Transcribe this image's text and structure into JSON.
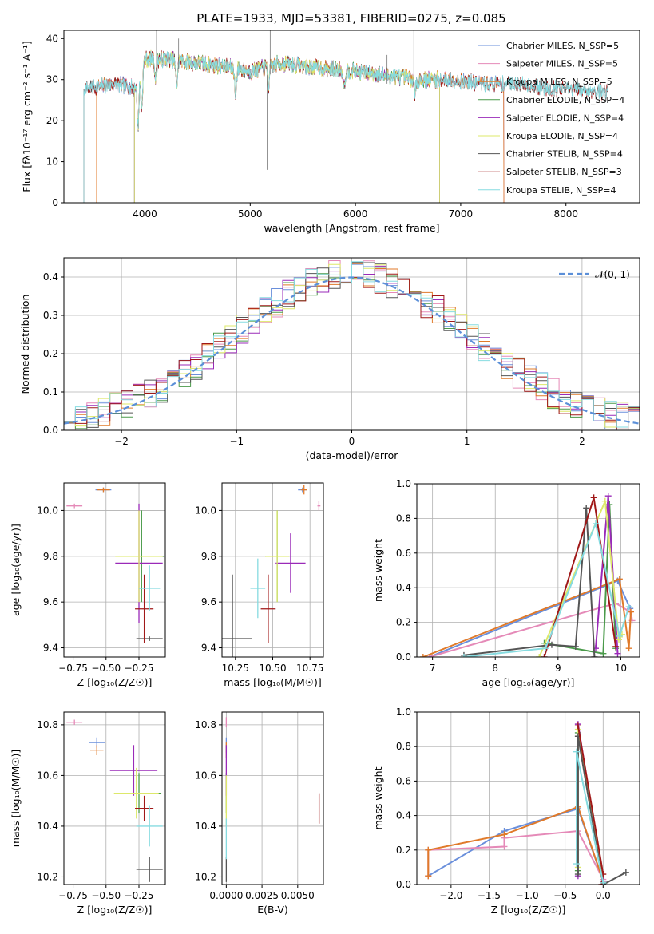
{
  "title": "PLATE=1933, MJD=53381, FIBERID=0275, z=0.085",
  "model_colors": [
    "#6a8fdb",
    "#e58ab8",
    "#e07a2a",
    "#4a9a4a",
    "#9a2ab8",
    "#dde86a",
    "#555555",
    "#a01818",
    "#86dbe0"
  ],
  "chart_data": [
    {
      "id": "spectrum",
      "type": "line",
      "title": "PLATE=1933, MJD=53381, FIBERID=0275, z=0.085",
      "xlabel": "wavelength [Angstrom, rest frame]",
      "ylabel": "Flux [fλ10⁻¹⁷ erg cm⁻² s⁻¹ A⁻¹]",
      "xlim": [
        3230,
        8700
      ],
      "ylim": [
        0,
        42
      ],
      "xticks": [
        4000,
        5000,
        6000,
        7000,
        8000
      ],
      "yticks": [
        0,
        10,
        20,
        30,
        40
      ],
      "grid": false,
      "legend_position": "top-right",
      "continuum": {
        "x": [
          3500,
          3700,
          3900,
          4000,
          4200,
          4500,
          4800,
          5000,
          5300,
          5600,
          6000,
          6300,
          6600,
          6900,
          7200,
          7500,
          7800,
          8100,
          8400
        ],
        "y": [
          28,
          29,
          28,
          35,
          35,
          34,
          33,
          32,
          34,
          33,
          32,
          31,
          30,
          30,
          29,
          29,
          28,
          27.5,
          27
        ]
      },
      "absorption_features": [
        {
          "x": 3934,
          "depth": 12
        },
        {
          "x": 3969,
          "depth": 10
        },
        {
          "x": 4102,
          "depth": 5
        },
        {
          "x": 4300,
          "depth": 6
        },
        {
          "x": 4861,
          "depth": 6
        },
        {
          "x": 5175,
          "depth": 5
        },
        {
          "x": 5893,
          "depth": 4
        },
        {
          "x": 6563,
          "depth": 4
        }
      ],
      "series": [
        {
          "name": "Chabrier MILES, N_SSP=5",
          "start": 3540,
          "end": 7410
        },
        {
          "name": "Salpeter MILES, N_SSP=5",
          "start": 3540,
          "end": 7410
        },
        {
          "name": "Kroupa MILES, N_SSP=5",
          "start": 3540,
          "end": 7410
        },
        {
          "name": "Chabrier ELODIE, N_SSP=4",
          "start": 3900,
          "end": 6800
        },
        {
          "name": "Salpeter ELODIE, N_SSP=4",
          "start": 3900,
          "end": 6800
        },
        {
          "name": "Kroupa ELODIE, N_SSP=4",
          "start": 3900,
          "end": 6800
        },
        {
          "name": "Chabrier STELIB, N_SSP=4",
          "start": 3420,
          "end": 8400
        },
        {
          "name": "Salpeter STELIB, N_SSP=3",
          "start": 3420,
          "end": 8400
        },
        {
          "name": "Kroupa STELIB, N_SSP=4",
          "start": 3420,
          "end": 8400
        }
      ]
    },
    {
      "id": "residuals",
      "type": "line",
      "xlabel": "(data-model)/error",
      "ylabel": "Normed distribution",
      "xlim": [
        -2.5,
        2.5
      ],
      "ylim": [
        0,
        0.45
      ],
      "xticks": [
        -2,
        -1,
        0,
        1,
        2
      ],
      "yticks": [
        0.0,
        0.1,
        0.2,
        0.3,
        0.4
      ],
      "grid": true,
      "legend_position": "top-right",
      "normal_curve": {
        "label": "𝒩(0, 1)",
        "mean": 0,
        "sigma": 1
      },
      "bin_width": 0.1,
      "series_count": 9
    },
    {
      "id": "age_vs_Z",
      "type": "errorbar",
      "xlabel": "Z [log₁₀(Z/Z☉)]",
      "ylabel": "age  [log₁₀(age/yr)]",
      "xlim": [
        -0.82,
        -0.05
      ],
      "ylim": [
        9.36,
        10.12
      ],
      "xticks": [
        -0.75,
        -0.5,
        -0.25
      ],
      "yticks": [
        9.4,
        9.6,
        9.8,
        10.0
      ],
      "grid": true,
      "points": [
        {
          "x": -0.74,
          "y": 10.02,
          "xerr": 0.06,
          "yerr": 0.01,
          "c": 1
        },
        {
          "x": -0.52,
          "y": 10.09,
          "xerr": 0.06,
          "yerr": 0.01,
          "c": 0
        },
        {
          "x": -0.52,
          "y": 10.09,
          "xerr": 0.05,
          "yerr": 0.01,
          "c": 2
        },
        {
          "x": -0.23,
          "y": 9.8,
          "xerr": 0.17,
          "yerr": 0.2,
          "c": 3
        },
        {
          "x": -0.25,
          "y": 9.77,
          "xerr": 0.18,
          "yerr": 0.26,
          "c": 4
        },
        {
          "x": -0.25,
          "y": 9.8,
          "xerr": 0.18,
          "yerr": 0.2,
          "c": 5
        },
        {
          "x": -0.17,
          "y": 9.44,
          "xerr": 0.1,
          "yerr": 0.01,
          "c": 6
        },
        {
          "x": -0.21,
          "y": 9.57,
          "xerr": 0.07,
          "yerr": 0.15,
          "c": 7
        },
        {
          "x": -0.17,
          "y": 9.66,
          "xerr": 0.08,
          "yerr": 0.1,
          "c": 8
        }
      ]
    },
    {
      "id": "age_vs_mass",
      "type": "errorbar",
      "xlabel": "mass [log₁₀(M/M☉)]",
      "ylabel": "",
      "xlim": [
        10.16,
        10.84
      ],
      "ylim": [
        9.36,
        10.12
      ],
      "xticks": [
        10.25,
        10.5,
        10.75
      ],
      "yticks": [
        9.4,
        9.6,
        9.8,
        10.0
      ],
      "grid": true,
      "points": [
        {
          "x": 10.81,
          "y": 10.02,
          "xerr": 0.01,
          "yerr": 0.02,
          "c": 1
        },
        {
          "x": 10.7,
          "y": 10.09,
          "xerr": 0.03,
          "yerr": 0.01,
          "c": 0
        },
        {
          "x": 10.71,
          "y": 10.09,
          "xerr": 0.02,
          "yerr": 0.02,
          "c": 2
        },
        {
          "x": 10.53,
          "y": 9.8,
          "xerr": 0.08,
          "yerr": 0.2,
          "c": 3
        },
        {
          "x": 10.62,
          "y": 9.77,
          "xerr": 0.1,
          "yerr": 0.13,
          "c": 4
        },
        {
          "x": 10.53,
          "y": 9.8,
          "xerr": 0.08,
          "yerr": 0.2,
          "c": 5
        },
        {
          "x": 10.23,
          "y": 9.44,
          "xerr": 0.13,
          "yerr": 0.28,
          "c": 6
        },
        {
          "x": 10.47,
          "y": 9.57,
          "xerr": 0.05,
          "yerr": 0.15,
          "c": 7
        },
        {
          "x": 10.4,
          "y": 9.66,
          "xerr": 0.05,
          "yerr": 0.13,
          "c": 8
        }
      ]
    },
    {
      "id": "weight_vs_age",
      "type": "line",
      "xlabel": "age  [log₁₀(age/yr)]",
      "ylabel": "mass weight",
      "xlim": [
        6.75,
        10.3
      ],
      "ylim": [
        0,
        1
      ],
      "xticks": [
        7,
        8,
        9,
        10
      ],
      "yticks": [
        0.0,
        0.2,
        0.4,
        0.6,
        0.8,
        1.0
      ],
      "grid": true,
      "series": [
        {
          "c": 0,
          "x": [
            6.95,
            9.95,
            10.15
          ],
          "y": [
            0.0,
            0.44,
            0.28
          ]
        },
        {
          "c": 1,
          "x": [
            6.95,
            9.92,
            10.15,
            10.18
          ],
          "y": [
            0.0,
            0.31,
            0.26,
            0.21
          ]
        },
        {
          "c": 2,
          "x": [
            6.85,
            9.98,
            10.13,
            10.16
          ],
          "y": [
            0.0,
            0.45,
            0.05,
            0.26
          ]
        },
        {
          "c": 3,
          "x": [
            8.78,
            9.72,
            9.82,
            9.92
          ],
          "y": [
            0.08,
            0.02,
            0.88,
            0.05
          ]
        },
        {
          "c": 4,
          "x": [
            9.6,
            9.8,
            9.95
          ],
          "y": [
            0.05,
            0.93,
            0.02
          ]
        },
        {
          "c": 5,
          "x": [
            8.7,
            9.75,
            9.97,
            10.02
          ],
          "y": [
            0.0,
            0.9,
            0.1,
            0.13
          ]
        },
        {
          "c": 6,
          "x": [
            7.5,
            8.9,
            9.28,
            9.45,
            9.58
          ],
          "y": [
            0.01,
            0.07,
            0.06,
            0.86,
            0.0
          ]
        },
        {
          "c": 7,
          "x": [
            8.78,
            9.57,
            9.92
          ],
          "y": [
            0.0,
            0.92,
            0.06
          ]
        },
        {
          "c": 8,
          "x": [
            7.5,
            8.8,
            9.6,
            9.98,
            10.13
          ],
          "y": [
            0.0,
            0.05,
            0.77,
            0.12,
            0.29
          ]
        }
      ]
    },
    {
      "id": "mass_vs_Z",
      "type": "errorbar",
      "xlabel": "Z [log₁₀(Z/Z☉)]",
      "ylabel": "mass [log₁₀(M/M☉)]",
      "xlim": [
        -0.82,
        -0.05
      ],
      "ylim": [
        10.17,
        10.85
      ],
      "xticks": [
        -0.75,
        -0.5,
        -0.25
      ],
      "yticks": [
        10.2,
        10.4,
        10.6,
        10.8
      ],
      "grid": true,
      "points": [
        {
          "x": -0.74,
          "y": 10.81,
          "xerr": 0.06,
          "yerr": 0.01,
          "c": 1
        },
        {
          "x": -0.57,
          "y": 10.73,
          "xerr": 0.06,
          "yerr": 0.02,
          "c": 0
        },
        {
          "x": -0.57,
          "y": 10.7,
          "xerr": 0.05,
          "yerr": 0.02,
          "c": 2
        },
        {
          "x": -0.25,
          "y": 10.53,
          "xerr": 0.17,
          "yerr": 0.08,
          "c": 3
        },
        {
          "x": -0.29,
          "y": 10.62,
          "xerr": 0.18,
          "yerr": 0.1,
          "c": 4
        },
        {
          "x": -0.27,
          "y": 10.53,
          "xerr": 0.17,
          "yerr": 0.1,
          "c": 5
        },
        {
          "x": -0.17,
          "y": 10.23,
          "xerr": 0.1,
          "yerr": 0.05,
          "c": 6
        },
        {
          "x": -0.21,
          "y": 10.47,
          "xerr": 0.07,
          "yerr": 0.05,
          "c": 7
        },
        {
          "x": -0.17,
          "y": 10.4,
          "xerr": 0.1,
          "yerr": 0.08,
          "c": 8
        }
      ]
    },
    {
      "id": "mass_vs_ebv",
      "type": "errorbar",
      "xlabel": "E(B-V)",
      "ylabel": "",
      "xlim": [
        -0.0003,
        0.0068
      ],
      "ylim": [
        10.17,
        10.85
      ],
      "xticks": [
        0.0,
        0.0025,
        0.005
      ],
      "xtick_labels": [
        "0.0000",
        "0.0025",
        "0.0050"
      ],
      "yticks": [
        10.2,
        10.4,
        10.6,
        10.8
      ],
      "grid": true,
      "points": [
        {
          "x": 0.0,
          "y": 10.81,
          "xerr": 0.0,
          "yerr": 0.02,
          "c": 1
        },
        {
          "x": 0.0,
          "y": 10.72,
          "xerr": 0.0,
          "yerr": 0.03,
          "c": 0
        },
        {
          "x": 0.0,
          "y": 10.7,
          "xerr": 0.0,
          "yerr": 0.03,
          "c": 2
        },
        {
          "x": 0.0,
          "y": 10.53,
          "xerr": 0.0,
          "yerr": 0.08,
          "c": 3
        },
        {
          "x": 0.0,
          "y": 10.62,
          "xerr": 0.0,
          "yerr": 0.1,
          "c": 4
        },
        {
          "x": 0.0,
          "y": 10.5,
          "xerr": 0.0,
          "yerr": 0.1,
          "c": 5
        },
        {
          "x": 0.0,
          "y": 10.23,
          "xerr": 0.0,
          "yerr": 0.05,
          "c": 6
        },
        {
          "x": 0.0065,
          "y": 10.47,
          "xerr": 0.0,
          "yerr": 0.06,
          "c": 7
        },
        {
          "x": 0.0,
          "y": 10.35,
          "xerr": 0.0,
          "yerr": 0.08,
          "c": 8
        }
      ]
    },
    {
      "id": "weight_vs_Z",
      "type": "line",
      "xlabel": "Z [log₁₀(Z/Z☉)]",
      "ylabel": "mass weight",
      "xlim": [
        -2.45,
        0.48
      ],
      "ylim": [
        0,
        1
      ],
      "xticks": [
        -2.0,
        -1.5,
        -1.0,
        -0.5,
        0.0
      ],
      "yticks": [
        0.0,
        0.2,
        0.4,
        0.6,
        0.8,
        1.0
      ],
      "grid": true,
      "series": [
        {
          "c": 0,
          "x": [
            -2.3,
            -1.3,
            -0.33,
            0.0
          ],
          "y": [
            0.05,
            0.31,
            0.44,
            0.02
          ]
        },
        {
          "c": 1,
          "x": [
            -2.3,
            -2.3,
            -1.3,
            -1.3,
            -0.33,
            0.0
          ],
          "y": [
            0.05,
            0.2,
            0.22,
            0.27,
            0.31,
            0.03
          ]
        },
        {
          "c": 2,
          "x": [
            -2.3,
            -2.3,
            -1.3,
            -0.33,
            0.0
          ],
          "y": [
            0.05,
            0.2,
            0.29,
            0.45,
            0.02
          ]
        },
        {
          "c": 3,
          "x": [
            -0.33,
            -0.33,
            0.0
          ],
          "y": [
            0.08,
            0.88,
            0.02
          ]
        },
        {
          "c": 4,
          "x": [
            -0.33,
            -0.33,
            0.0
          ],
          "y": [
            0.05,
            0.93,
            0.02
          ]
        },
        {
          "c": 5,
          "x": [
            -0.33,
            -0.33,
            0.0
          ],
          "y": [
            0.1,
            0.9,
            0.01
          ]
        },
        {
          "c": 6,
          "x": [
            -0.33,
            -0.33,
            0.0,
            0.3
          ],
          "y": [
            0.06,
            0.86,
            0.0,
            0.07
          ]
        },
        {
          "c": 7,
          "x": [
            -0.33,
            0.0,
            -0.02
          ],
          "y": [
            0.92,
            0.06,
            0.0
          ]
        },
        {
          "c": 8,
          "x": [
            -0.35,
            -0.35,
            0.0
          ],
          "y": [
            0.12,
            0.77,
            0.01
          ]
        }
      ]
    }
  ]
}
